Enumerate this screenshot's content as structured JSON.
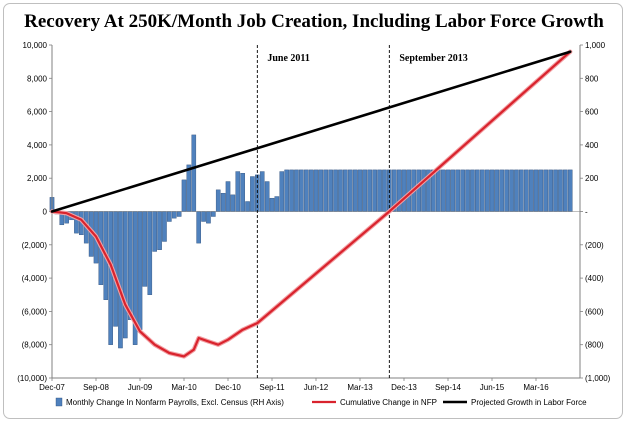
{
  "chart_data": {
    "type": "bar+line",
    "title": "Recovery At 250K/Month Job Creation, Including Labor Force Growth",
    "xlabel": "",
    "ylabel_left": "",
    "ylabel_right": "",
    "x_range": [
      "2007-12",
      "2016-12"
    ],
    "ylim_left": [
      -10000,
      10000
    ],
    "ylim_right": [
      -1000,
      1000
    ],
    "left_ticks": [
      "10,000",
      "8,000",
      "6,000",
      "4,000",
      "2,000",
      "0",
      "(2,000)",
      "(4,000)",
      "(6,000)",
      "(8,000)",
      "(10,000)"
    ],
    "right_ticks": [
      "1,000",
      "800",
      "600",
      "400",
      "200",
      "-",
      "(200)",
      "(400)",
      "(600)",
      "(800)",
      "(1,000)"
    ],
    "x_ticks": [
      "Dec-07",
      "Sep-08",
      "Jun-09",
      "Mar-10",
      "Dec-10",
      "Sep-11",
      "Jun-12",
      "Mar-13",
      "Dec-13",
      "Sep-14",
      "Jun-15",
      "Mar-16"
    ],
    "grid": false,
    "legend_position": "bottom",
    "annotations": [
      {
        "text": "June 2011",
        "x": "2011-06"
      },
      {
        "text": "September 2013",
        "x": "2013-09"
      }
    ],
    "series": [
      {
        "name": "Monthly Change In Nonfarm Payrolls, Excl. Census (RH Axis)",
        "type": "bar",
        "axis": "right",
        "color": "#4f81bd",
        "start": "2007-12",
        "values": [
          85,
          -15,
          -80,
          -70,
          -50,
          -130,
          -140,
          -190,
          -270,
          -310,
          -440,
          -530,
          -800,
          -690,
          -820,
          -760,
          -650,
          -800,
          -710,
          -450,
          -500,
          -240,
          -230,
          -180,
          -60,
          -40,
          -30,
          190,
          280,
          460,
          -190,
          -60,
          -70,
          -30,
          130,
          110,
          180,
          100,
          240,
          230,
          60,
          210,
          220,
          240,
          180,
          80,
          90,
          240
        ]
      },
      {
        "name": "Cumulative Change in NFP",
        "type": "line",
        "axis": "left",
        "color": "#d9232d",
        "points": [
          [
            "2007-12",
            0
          ],
          [
            "2008-03",
            -100
          ],
          [
            "2008-06",
            -500
          ],
          [
            "2008-09",
            -1500
          ],
          [
            "2008-12",
            -3200
          ],
          [
            "2009-03",
            -5600
          ],
          [
            "2009-06",
            -7200
          ],
          [
            "2009-09",
            -8000
          ],
          [
            "2009-12",
            -8500
          ],
          [
            "2010-03",
            -8700
          ],
          [
            "2010-05",
            -8300
          ],
          [
            "2010-06",
            -7600
          ],
          [
            "2010-08",
            -7800
          ],
          [
            "2010-10",
            -8000
          ],
          [
            "2010-12",
            -7700
          ],
          [
            "2011-03",
            -7100
          ],
          [
            "2011-06",
            -6700
          ],
          [
            "2013-09",
            0
          ],
          [
            "2016-10",
            9600
          ]
        ]
      },
      {
        "name": "Projected Growth in Labor Force",
        "type": "line",
        "axis": "left",
        "color": "#000000",
        "points": [
          [
            "2007-12",
            0
          ],
          [
            "2016-10",
            9600
          ]
        ]
      }
    ]
  }
}
